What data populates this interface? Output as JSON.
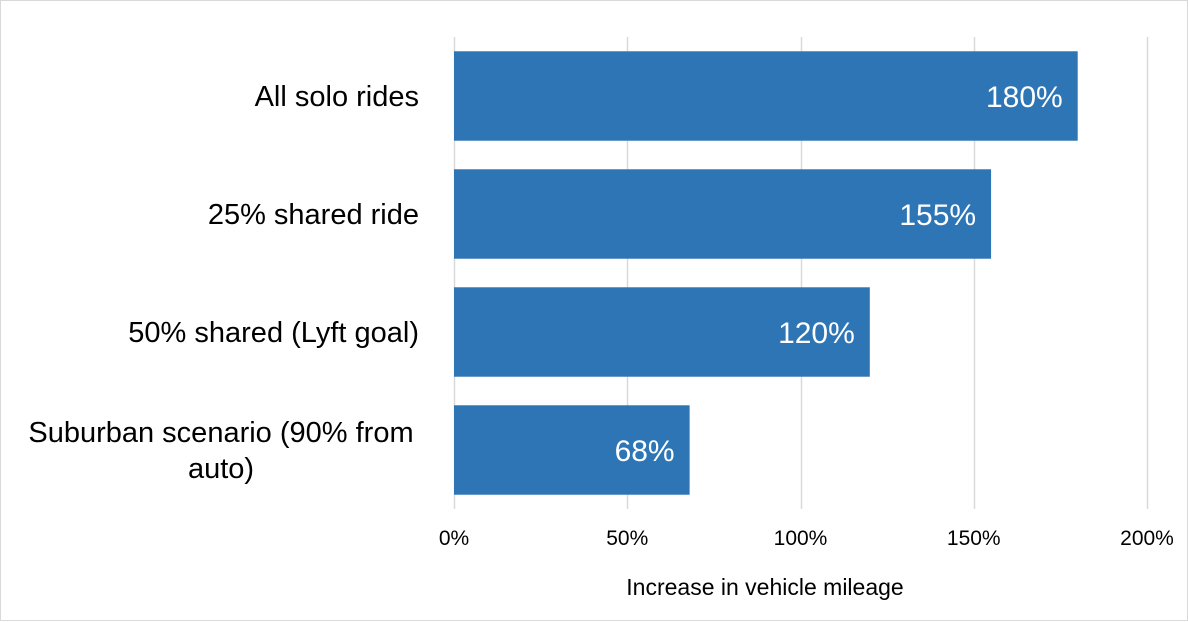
{
  "chart_data": {
    "type": "bar",
    "orientation": "horizontal",
    "categories": [
      "All solo rides",
      "25% shared ride",
      "50% shared (Lyft goal)",
      "Suburban scenario (90% from auto)"
    ],
    "values": [
      180,
      155,
      120,
      68
    ],
    "data_labels": [
      "180%",
      "155%",
      "120%",
      "68%"
    ],
    "xlabel": "Increase in vehicle mileage",
    "xlim": [
      0,
      200
    ],
    "x_ticks": [
      0,
      50,
      100,
      150,
      200
    ],
    "x_tick_labels": [
      "0%",
      "50%",
      "100%",
      "150%",
      "200%"
    ],
    "grid": "vertical",
    "legend": "none",
    "bar_color": "#2E75B6",
    "grid_color": "#d9d9d9"
  }
}
